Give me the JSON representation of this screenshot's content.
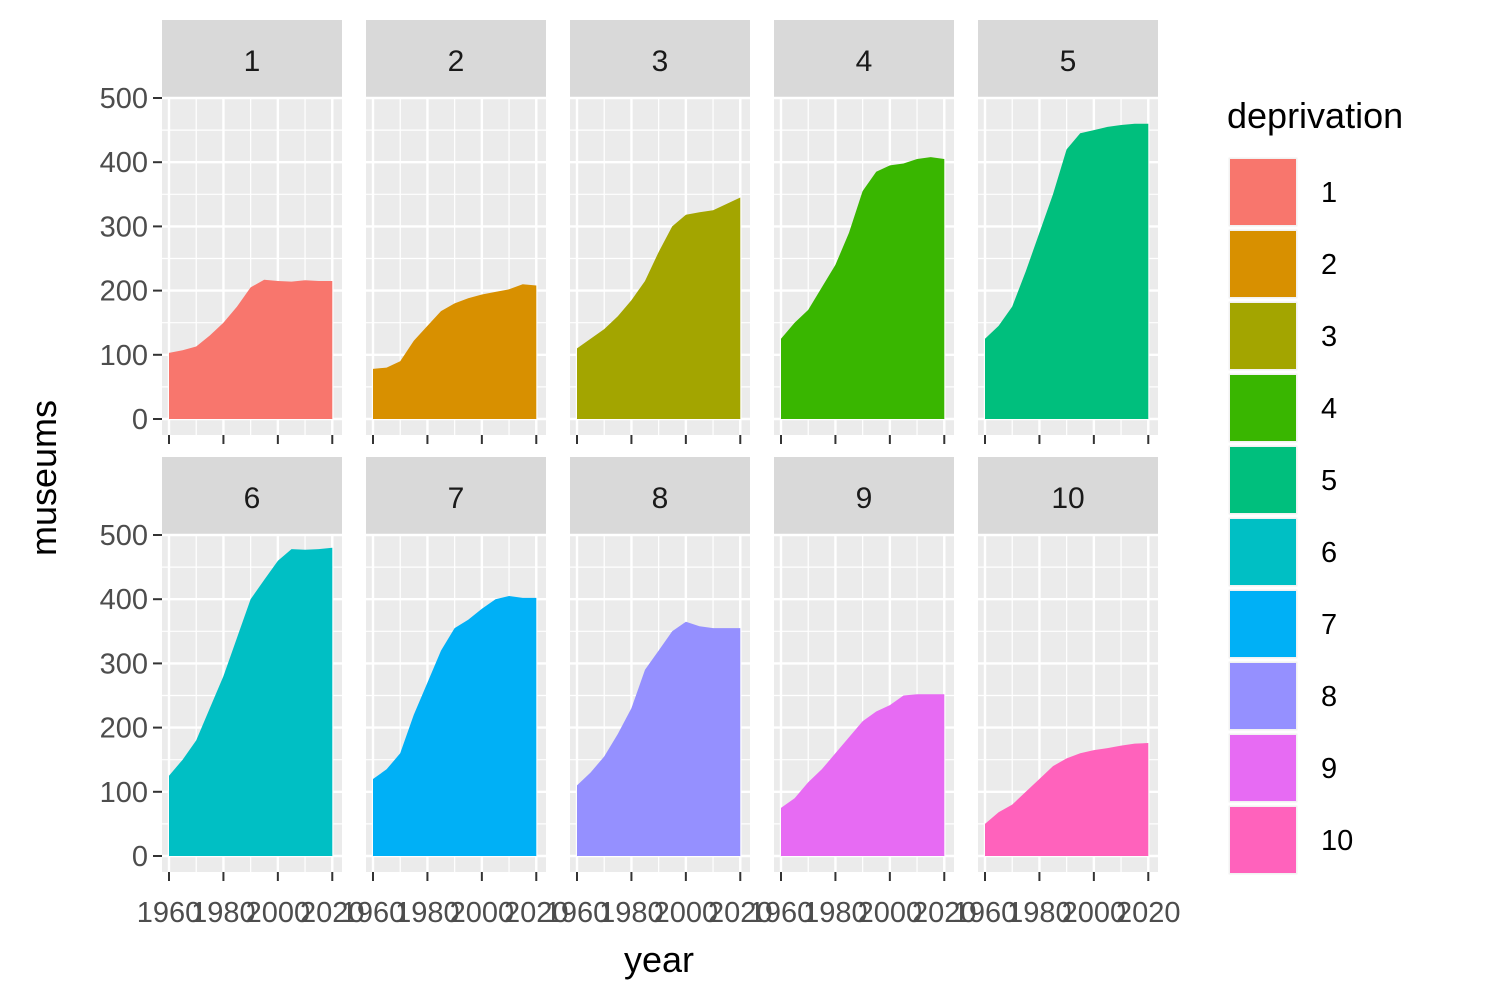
{
  "chart_data": {
    "type": "area",
    "faceted_by": "deprivation",
    "xlabel": "year",
    "ylabel": "museums",
    "xlim": [
      1960,
      2021
    ],
    "ylim": [
      0,
      500
    ],
    "x_ticks": [
      1960,
      1980,
      2000,
      2020
    ],
    "x_tick_labels": [
      "1960",
      "1980",
      "2000",
      "2020"
    ],
    "y_ticks": [
      0,
      100,
      200,
      300,
      400,
      500
    ],
    "y_tick_labels": [
      "0",
      "100",
      "200",
      "300",
      "400",
      "500"
    ],
    "grid": true,
    "legend": {
      "title": "deprivation",
      "placement": "right"
    },
    "x": [
      1960,
      1965,
      1970,
      1975,
      1980,
      1985,
      1990,
      1995,
      2000,
      2005,
      2010,
      2015,
      2020
    ],
    "series": [
      {
        "name": "1",
        "color": "#F8766D",
        "values": [
          103,
          107,
          113,
          130,
          150,
          175,
          205,
          217,
          215,
          214,
          216,
          215,
          215
        ]
      },
      {
        "name": "2",
        "color": "#D89000",
        "values": [
          78,
          80,
          90,
          122,
          145,
          168,
          180,
          188,
          194,
          198,
          202,
          210,
          208
        ]
      },
      {
        "name": "3",
        "color": "#A3A500",
        "values": [
          110,
          125,
          140,
          160,
          185,
          215,
          260,
          300,
          318,
          322,
          325,
          335,
          345
        ]
      },
      {
        "name": "4",
        "color": "#39B600",
        "values": [
          125,
          150,
          170,
          205,
          240,
          290,
          355,
          385,
          395,
          398,
          405,
          408,
          405
        ]
      },
      {
        "name": "5",
        "color": "#00BF7D",
        "values": [
          125,
          145,
          175,
          230,
          290,
          350,
          420,
          445,
          450,
          455,
          458,
          460,
          460
        ]
      },
      {
        "name": "6",
        "color": "#00BFC4",
        "values": [
          125,
          150,
          180,
          230,
          280,
          340,
          400,
          430,
          460,
          478,
          477,
          478,
          480
        ]
      },
      {
        "name": "7",
        "color": "#00B0F6",
        "values": [
          120,
          135,
          160,
          220,
          270,
          320,
          355,
          368,
          385,
          400,
          405,
          402,
          402
        ]
      },
      {
        "name": "8",
        "color": "#9590FF",
        "values": [
          110,
          130,
          155,
          190,
          230,
          290,
          320,
          350,
          365,
          358,
          355,
          355,
          355
        ]
      },
      {
        "name": "9",
        "color": "#E76BF3",
        "values": [
          75,
          90,
          115,
          135,
          160,
          185,
          210,
          225,
          235,
          250,
          252,
          252,
          252
        ]
      },
      {
        "name": "10",
        "color": "#FF62BC",
        "values": [
          50,
          68,
          80,
          100,
          120,
          140,
          152,
          160,
          165,
          168,
          172,
          175,
          176
        ]
      }
    ]
  }
}
